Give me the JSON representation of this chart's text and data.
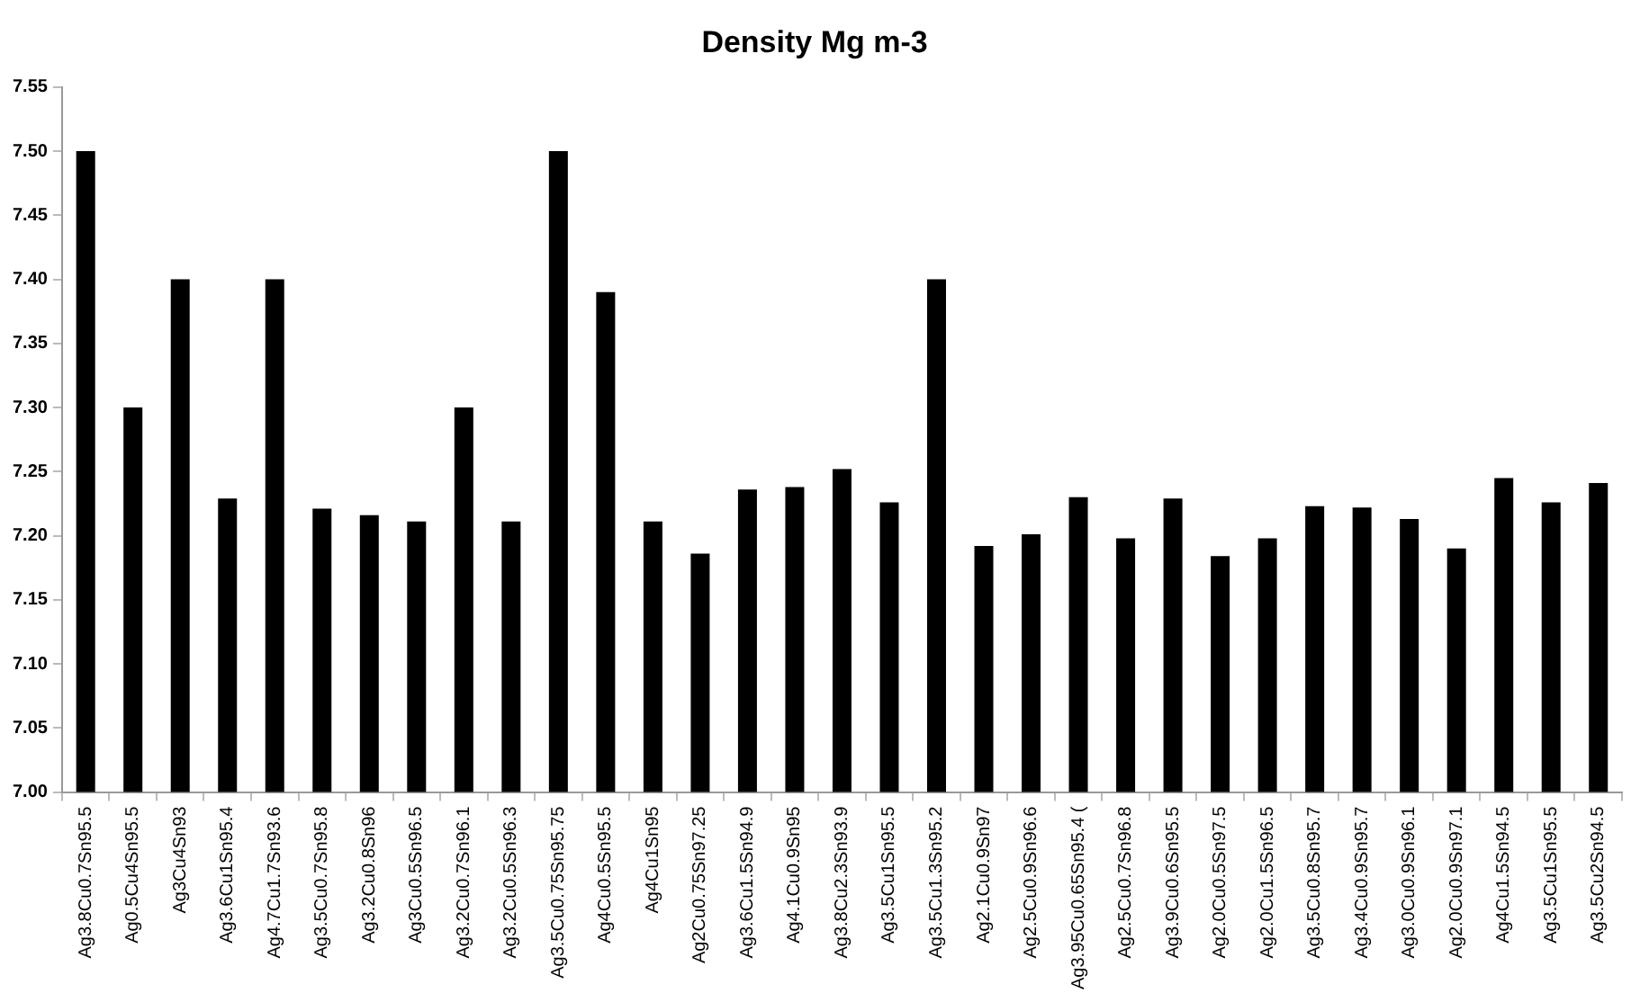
{
  "chart_data": {
    "type": "bar",
    "title": "Density Mg m-3",
    "categories": [
      "Ag3.8Cu0.7Sn95.5",
      "Ag0.5Cu4Sn95.5",
      "Ag3Cu4Sn93",
      "Ag3.6Cu1Sn95.4",
      "Ag4.7Cu1.7Sn93.6",
      "Ag3.5Cu0.7Sn95.8",
      "Ag3.2Cu0.8Sn96",
      "Ag3Cu0.5Sn96.5",
      "Ag3.2Cu0.7Sn96.1",
      "Ag3.2Cu0.5Sn96.3",
      "Ag3.5Cu0.75Sn95.75",
      "Ag4Cu0.5Sn95.5",
      "Ag4Cu1Sn95",
      "Ag2Cu0.75Sn97.25",
      "Ag3.6Cu1.5Sn94.9",
      "Ag4.1Cu0.9Sn95",
      "Ag3.8Cu2.3Sn93.9",
      "Ag3.5Cu1Sn95.5",
      "Ag3.5Cu1.3Sn95.2",
      "Ag2.1Cu0.9Sn97",
      "Ag2.5Cu0.9Sn96.6",
      "Ag3.95Cu0.65Sn95.4 (",
      "Ag2.5Cu0.7Sn96.8",
      "Ag3.9Cu0.6Sn95.5",
      "Ag2.0Cu0.5Sn97.5",
      "Ag2.0Cu1.5Sn96.5",
      "Ag3.5Cu0.8Sn95.7",
      "Ag3.4Cu0.9Sn95.7",
      "Ag3.0Cu0.9Sn96.1",
      "Ag2.0Cu0.9Sn97.1",
      "Ag4Cu1.5Sn94.5",
      "Ag3.5Cu1Sn95.5",
      "Ag3.5Cu2Sn94.5"
    ],
    "values": [
      7.5,
      7.3,
      7.4,
      7.229,
      7.4,
      7.221,
      7.216,
      7.211,
      7.3,
      7.211,
      7.5,
      7.39,
      7.211,
      7.186,
      7.236,
      7.238,
      7.252,
      7.226,
      7.4,
      7.192,
      7.201,
      7.23,
      7.198,
      7.229,
      7.184,
      7.198,
      7.223,
      7.222,
      7.213,
      7.19,
      7.245,
      7.226,
      7.241
    ],
    "color": "#000000",
    "ylim": [
      7.0,
      7.55
    ],
    "yticks": [
      {
        "value": 7.0,
        "label": "7.00"
      },
      {
        "value": 7.05,
        "label": "7.05"
      },
      {
        "value": 7.1,
        "label": "7.10"
      },
      {
        "value": 7.15,
        "label": "7.15"
      },
      {
        "value": 7.2,
        "label": "7.20"
      },
      {
        "value": 7.25,
        "label": "7.25"
      },
      {
        "value": 7.3,
        "label": "7.30"
      },
      {
        "value": 7.35,
        "label": "7.35"
      },
      {
        "value": 7.4,
        "label": "7.40"
      },
      {
        "value": 7.45,
        "label": "7.45"
      },
      {
        "value": 7.5,
        "label": "7.50"
      },
      {
        "value": 7.55,
        "label": "7.55"
      }
    ],
    "grid": false,
    "legend": false
  }
}
